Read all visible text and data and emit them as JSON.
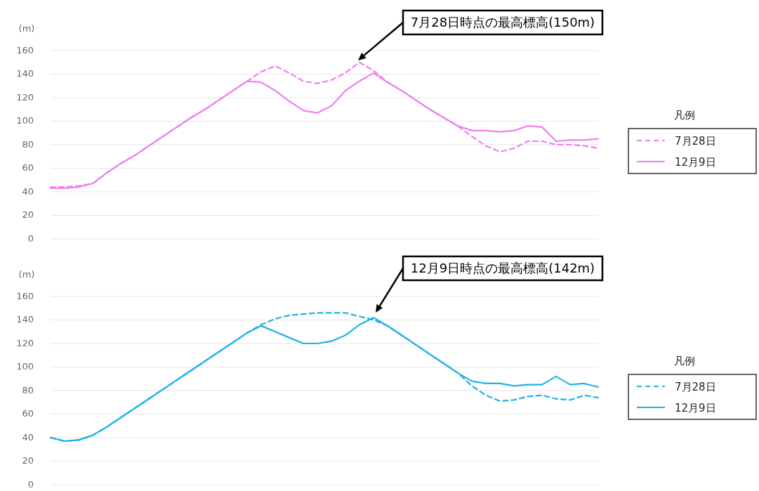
{
  "chart_data": [
    {
      "type": "line",
      "ylabel": "(m)",
      "legend_title": "凡例",
      "legend": "right",
      "grid": "y",
      "ylim": [
        0,
        160
      ],
      "yticks": [
        0,
        20,
        40,
        60,
        80,
        100,
        120,
        140,
        160
      ],
      "tick_labels": "y",
      "categories": [
        null,
        null,
        null,
        null,
        null,
        null,
        null,
        null,
        null,
        null,
        null,
        null,
        null,
        null,
        null,
        null,
        null,
        null,
        null,
        null,
        null,
        null,
        null,
        null,
        null,
        null,
        null,
        null,
        null,
        null,
        null,
        null,
        null,
        null,
        null,
        null,
        null,
        null,
        null,
        null
      ],
      "annotations": [
        "7月28日時点の最高標高(150m)"
      ],
      "series": [
        {
          "name": "7月28日",
          "color": "#f07ef0",
          "line_style": "dashed",
          "values": [
            44,
            44,
            45,
            47,
            56,
            64,
            71,
            79,
            87,
            95,
            103,
            110,
            118,
            126,
            134,
            142,
            147,
            141,
            134,
            132,
            135,
            141,
            150,
            143,
            133,
            126,
            118,
            110,
            103,
            96,
            87,
            79,
            74,
            77,
            83,
            83,
            80,
            80,
            79,
            77
          ]
        },
        {
          "name": "12月9日",
          "color": "#f07ef0",
          "line_style": "solid",
          "values": [
            43,
            43,
            44,
            47,
            56,
            64,
            71,
            79,
            87,
            95,
            103,
            110,
            118,
            126,
            134,
            133,
            126,
            117,
            109,
            107,
            113,
            126,
            134,
            141,
            133,
            126,
            118,
            110,
            103,
            96,
            92,
            92,
            91,
            92,
            96,
            95,
            83,
            84,
            84,
            85
          ]
        }
      ]
    },
    {
      "type": "line",
      "ylabel": "(m)",
      "legend_title": "凡例",
      "legend": "right",
      "grid": "y",
      "ylim": [
        0,
        160
      ],
      "yticks": [
        0,
        20,
        40,
        60,
        80,
        100,
        120,
        140,
        160
      ],
      "tick_labels": "y",
      "categories": [
        null,
        null,
        null,
        null,
        null,
        null,
        null,
        null,
        null,
        null,
        null,
        null,
        null,
        null,
        null,
        null,
        null,
        null,
        null,
        null,
        null,
        null,
        null,
        null,
        null,
        null,
        null,
        null,
        null,
        null,
        null,
        null,
        null,
        null,
        null,
        null,
        null,
        null,
        null,
        null
      ],
      "annotations": [
        "12月9日時点の最高標高(142m)"
      ],
      "series": [
        {
          "name": "7月28日",
          "color": "#1fb2e4",
          "line_style": "dashed",
          "values": [
            40,
            37,
            38,
            42,
            49,
            57,
            65,
            73,
            81,
            89,
            97,
            105,
            113,
            121,
            129,
            136,
            141,
            144,
            145,
            146,
            146,
            146,
            143,
            140,
            135,
            127,
            119,
            111,
            103,
            95,
            84,
            76,
            71,
            72,
            75,
            76,
            73,
            72,
            76,
            74
          ]
        },
        {
          "name": "12月9日",
          "color": "#1fb2e4",
          "line_style": "solid",
          "values": [
            40,
            37,
            38,
            42,
            49,
            57,
            65,
            73,
            81,
            89,
            97,
            105,
            113,
            121,
            129,
            135,
            130,
            125,
            120,
            120,
            122,
            127,
            136,
            142,
            135,
            127,
            119,
            111,
            103,
            95,
            88,
            86,
            86,
            84,
            85,
            85,
            92,
            85,
            86,
            83
          ]
        }
      ]
    }
  ]
}
